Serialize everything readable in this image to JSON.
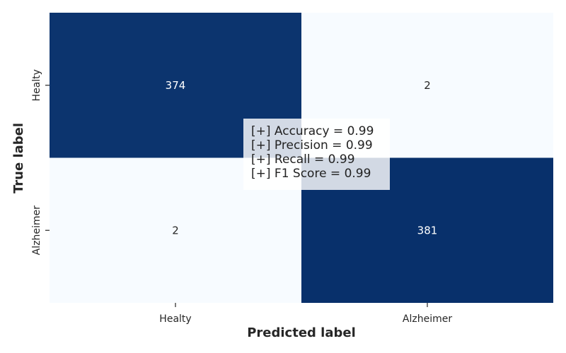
{
  "chart_data": {
    "type": "heatmap",
    "title": "",
    "xlabel": "Predicted label",
    "ylabel": "True label",
    "x_categories": [
      "Healty",
      "Alzheimer"
    ],
    "y_categories": [
      "Healty",
      "Alzheimer"
    ],
    "values": [
      [
        374,
        2
      ],
      [
        2,
        381
      ]
    ],
    "colormap": "Blues",
    "low_color": "#f7fbff",
    "high_color": "#08306b",
    "text_on_dark": "#ffffff",
    "text_on_light": "#262626",
    "colorbar": false
  },
  "metrics": [
    "[+] Accuracy = 0.99",
    "[+] Precision = 0.99",
    "[+] Recall = 0.99",
    "[+] F1 Score = 0.99"
  ]
}
